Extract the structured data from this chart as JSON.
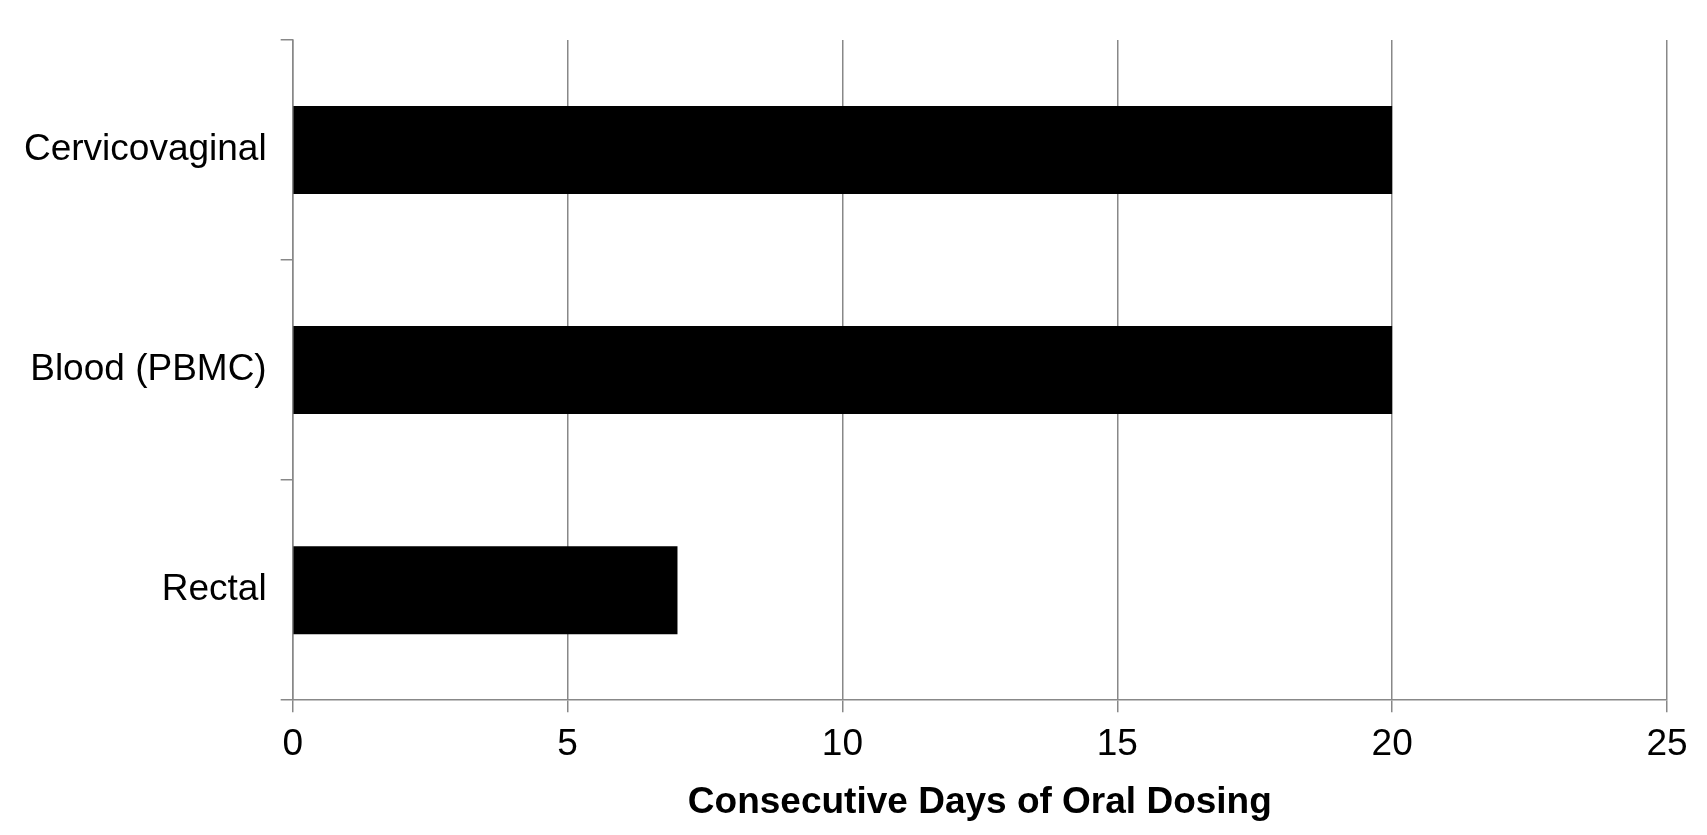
{
  "chart_data": {
    "type": "bar",
    "orientation": "horizontal",
    "xlabel": "Consecutive Days of Oral Dosing",
    "categories": [
      "Cervicovaginal",
      "Blood (PBMC)",
      "Rectal"
    ],
    "values": [
      20,
      20,
      7
    ],
    "color": "#000000",
    "xlim": [
      0,
      25
    ],
    "xticks": [
      0,
      5,
      10,
      15,
      20,
      25
    ],
    "grid": "x",
    "legend": false
  }
}
